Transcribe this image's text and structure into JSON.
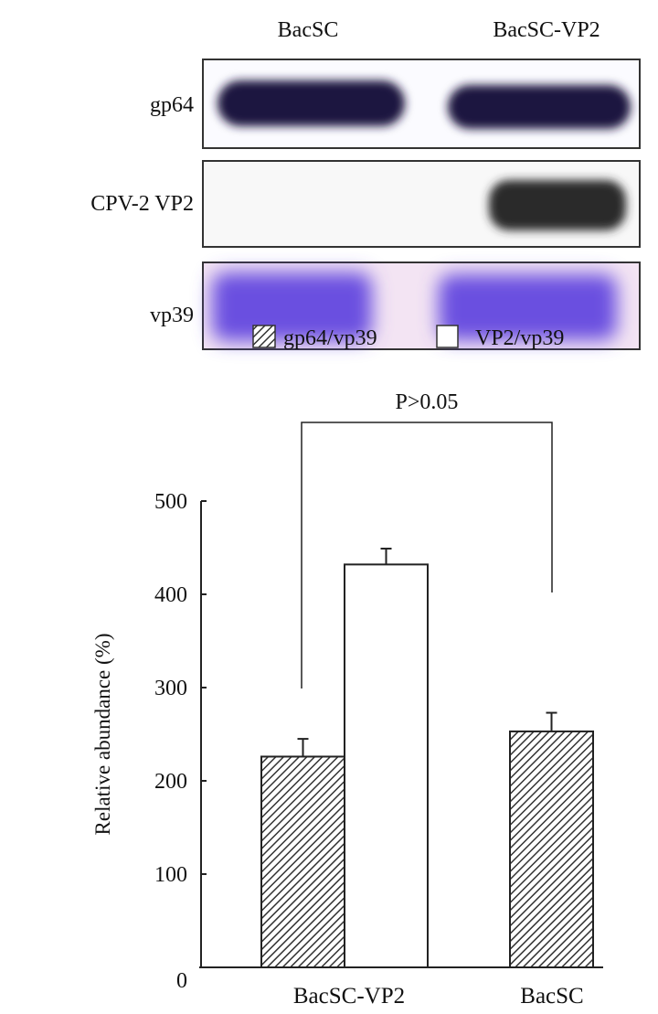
{
  "blot": {
    "lanes": [
      "BacSC",
      "BacSC-VP2"
    ],
    "rows": [
      "gp64",
      "CPV-2 VP2",
      "vp39"
    ],
    "colors": {
      "gp64_band": "#1e1240",
      "vp2_band": "#2a2a2a",
      "vp39_band": "#6a4fe0",
      "vp39_bg": "#f3e4f3"
    }
  },
  "chart_data": {
    "type": "bar",
    "categories": [
      "BacSC-VP2",
      "BacSC"
    ],
    "series": [
      {
        "name": "gp64/vp39",
        "values": [
          226,
          253
        ],
        "errors": [
          19,
          20
        ],
        "fill": "hatched"
      },
      {
        "name": "VP2/vp39",
        "values": [
          432,
          null
        ],
        "errors": [
          17,
          null
        ],
        "fill": "white"
      }
    ],
    "ylabel": "Relative abundance (%)",
    "xlabel": "",
    "ylim": [
      0,
      500
    ],
    "yticks": [
      "0",
      "100",
      "200",
      "300",
      "400",
      "500"
    ],
    "legend_position": "top",
    "annotation": "P>0.05",
    "grid": false
  }
}
